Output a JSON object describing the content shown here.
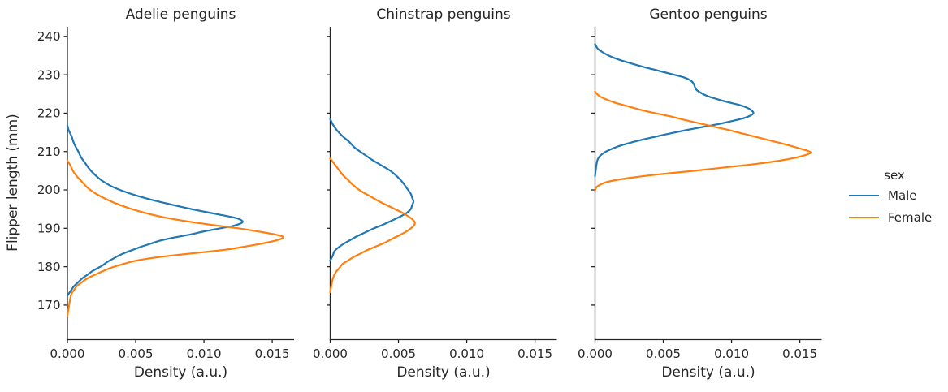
{
  "figure": {
    "xlabel": "Density (a.u.)",
    "ylabel": "Flipper length (mm)",
    "background_color": "#ffffff",
    "text_color": "#262626",
    "axis_color": "#262626"
  },
  "legend": {
    "title": "sex",
    "entries": [
      {
        "label": "Male",
        "color": "#1f77b4"
      },
      {
        "label": "Female",
        "color": "#ff7f0e"
      }
    ]
  },
  "chart_data": {
    "type": "line",
    "subtype": "kde-density-horizontal",
    "xlabel": "Density (a.u.)",
    "ylabel": "Flipper length (mm)",
    "xlim": [
      0,
      0.0166
    ],
    "ylim": [
      161,
      242.5
    ],
    "xticks": [
      0,
      0.005,
      0.01,
      0.015
    ],
    "xtick_labels": [
      "0.000",
      "0.005",
      "0.010",
      "0.015"
    ],
    "yticks": [
      170,
      180,
      190,
      200,
      210,
      220,
      230,
      240
    ],
    "grid": false,
    "legend_position": "right-outside",
    "facets": [
      {
        "title": "Adelie penguins",
        "series": [
          {
            "name": "Male",
            "color": "#1f77b4",
            "points": [
              [
                216.8,
                0
              ],
              [
                215.5,
                0.0001
              ],
              [
                214,
                0.0003
              ],
              [
                212,
                0.0005
              ],
              [
                210,
                0.0008
              ],
              [
                208.5,
                0.001
              ],
              [
                207,
                0.0013
              ],
              [
                205.5,
                0.0016
              ],
              [
                204,
                0.002
              ],
              [
                202.5,
                0.0025
              ],
              [
                201,
                0.0032
              ],
              [
                199.8,
                0.004
              ],
              [
                198.6,
                0.005
              ],
              [
                197.4,
                0.0062
              ],
              [
                196.2,
                0.0076
              ],
              [
                195,
                0.0091
              ],
              [
                193.8,
                0.0108
              ],
              [
                192.8,
                0.0122
              ],
              [
                192.2,
                0.0127
              ],
              [
                191.5,
                0.0128
              ],
              [
                190.7,
                0.0122
              ],
              [
                190,
                0.0112
              ],
              [
                189.2,
                0.01
              ],
              [
                188.4,
                0.009
              ],
              [
                187.6,
                0.0078
              ],
              [
                186.8,
                0.0068
              ],
              [
                186,
                0.0061
              ],
              [
                185.2,
                0.0054
              ],
              [
                184.4,
                0.0048
              ],
              [
                183.6,
                0.0042
              ],
              [
                182.8,
                0.0037
              ],
              [
                182,
                0.0033
              ],
              [
                181.2,
                0.0029
              ],
              [
                180.4,
                0.0026
              ],
              [
                179.6,
                0.0022
              ],
              [
                178.8,
                0.0018
              ],
              [
                178,
                0.0015
              ],
              [
                177,
                0.0011
              ],
              [
                176,
                0.0008
              ],
              [
                175,
                0.0005
              ],
              [
                174,
                0.0003
              ],
              [
                173,
                0.0001
              ],
              [
                172.4,
                0
              ]
            ]
          },
          {
            "name": "Female",
            "color": "#ff7f0e",
            "points": [
              [
                207.6,
                0
              ],
              [
                206.5,
                0.0002
              ],
              [
                205,
                0.0004
              ],
              [
                203.5,
                0.0007
              ],
              [
                202,
                0.0011
              ],
              [
                200.5,
                0.0015
              ],
              [
                199,
                0.0021
              ],
              [
                197.5,
                0.0029
              ],
              [
                196,
                0.0039
              ],
              [
                194.5,
                0.0052
              ],
              [
                193,
                0.0069
              ],
              [
                191.8,
                0.0088
              ],
              [
                190.8,
                0.0108
              ],
              [
                189.9,
                0.0127
              ],
              [
                189.1,
                0.0141
              ],
              [
                188.4,
                0.0152
              ],
              [
                187.8,
                0.0158
              ],
              [
                187.2,
                0.0156
              ],
              [
                186.5,
                0.0149
              ],
              [
                185.8,
                0.0139
              ],
              [
                185.1,
                0.0128
              ],
              [
                184.4,
                0.0115
              ],
              [
                183.8,
                0.01
              ],
              [
                183.2,
                0.0084
              ],
              [
                182.6,
                0.0069
              ],
              [
                182,
                0.0057
              ],
              [
                181.4,
                0.0048
              ],
              [
                180.8,
                0.0042
              ],
              [
                180.2,
                0.0036
              ],
              [
                179.6,
                0.0031
              ],
              [
                179,
                0.0027
              ],
              [
                178.2,
                0.0022
              ],
              [
                177.4,
                0.0017
              ],
              [
                176.6,
                0.0013
              ],
              [
                175.8,
                0.001
              ],
              [
                175,
                0.0007
              ],
              [
                174,
                0.0005
              ],
              [
                173,
                0.0003
              ],
              [
                171.5,
                0.0002
              ],
              [
                169.5,
                0.0001
              ],
              [
                167.2,
                0
              ]
            ]
          }
        ]
      },
      {
        "title": "Chinstrap penguins",
        "series": [
          {
            "name": "Male",
            "color": "#1f77b4",
            "points": [
              [
                218.5,
                0
              ],
              [
                217,
                0.0002
              ],
              [
                215.5,
                0.0005
              ],
              [
                214,
                0.0009
              ],
              [
                212.5,
                0.0014
              ],
              [
                211,
                0.0018
              ],
              [
                209.5,
                0.0024
              ],
              [
                208,
                0.003
              ],
              [
                206.5,
                0.0037
              ],
              [
                205,
                0.0044
              ],
              [
                203.5,
                0.0049
              ],
              [
                202,
                0.0053
              ],
              [
                200.5,
                0.0056
              ],
              [
                199,
                0.0059
              ],
              [
                198,
                0.006
              ],
              [
                197,
                0.0061
              ],
              [
                196,
                0.006
              ],
              [
                195,
                0.0059
              ],
              [
                194,
                0.0056
              ],
              [
                193,
                0.0051
              ],
              [
                192,
                0.0045
              ],
              [
                191,
                0.0039
              ],
              [
                190,
                0.0032
              ],
              [
                189,
                0.0026
              ],
              [
                188,
                0.002
              ],
              [
                187,
                0.0015
              ],
              [
                186,
                0.001
              ],
              [
                185,
                0.0006
              ],
              [
                184,
                0.0003
              ],
              [
                183,
                0.0002
              ],
              [
                181.6,
                0
              ]
            ]
          },
          {
            "name": "Female",
            "color": "#ff7f0e",
            "points": [
              [
                208.2,
                0
              ],
              [
                206.8,
                0.0003
              ],
              [
                205.4,
                0.0006
              ],
              [
                204,
                0.0009
              ],
              [
                202.6,
                0.0013
              ],
              [
                201.2,
                0.0017
              ],
              [
                199.8,
                0.0022
              ],
              [
                198.4,
                0.0029
              ],
              [
                197,
                0.0036
              ],
              [
                195.6,
                0.0044
              ],
              [
                194.4,
                0.0051
              ],
              [
                193.4,
                0.0056
              ],
              [
                192.4,
                0.006
              ],
              [
                191.5,
                0.0062
              ],
              [
                190.6,
                0.0061
              ],
              [
                189.7,
                0.0058
              ],
              [
                188.8,
                0.0054
              ],
              [
                187.9,
                0.0049
              ],
              [
                187,
                0.0044
              ],
              [
                186.1,
                0.0039
              ],
              [
                185.2,
                0.0033
              ],
              [
                184.3,
                0.0027
              ],
              [
                183.4,
                0.0022
              ],
              [
                182.5,
                0.0017
              ],
              [
                181.6,
                0.0013
              ],
              [
                180.7,
                0.0009
              ],
              [
                179.8,
                0.0007
              ],
              [
                178.5,
                0.0004
              ],
              [
                177,
                0.0002
              ],
              [
                175.5,
                0.0001
              ],
              [
                173.4,
                0
              ]
            ]
          }
        ]
      },
      {
        "title": "Gentoo penguins",
        "series": [
          {
            "name": "Male",
            "color": "#1f77b4",
            "points": [
              [
                238,
                0
              ],
              [
                236.8,
                0.0002
              ],
              [
                236,
                0.0005
              ],
              [
                235,
                0.001
              ],
              [
                234,
                0.0017
              ],
              [
                233,
                0.0026
              ],
              [
                232,
                0.0036
              ],
              [
                231,
                0.0047
              ],
              [
                230,
                0.0058
              ],
              [
                229.2,
                0.0066
              ],
              [
                228.5,
                0.007
              ],
              [
                227.8,
                0.0072
              ],
              [
                227,
                0.0073
              ],
              [
                226.2,
                0.0074
              ],
              [
                225.4,
                0.0077
              ],
              [
                224.5,
                0.0082
              ],
              [
                223.7,
                0.0089
              ],
              [
                222.9,
                0.0097
              ],
              [
                222.1,
                0.0106
              ],
              [
                221.3,
                0.0112
              ],
              [
                220.6,
                0.0115
              ],
              [
                220,
                0.0116
              ],
              [
                219.4,
                0.0114
              ],
              [
                218.7,
                0.0109
              ],
              [
                218,
                0.0101
              ],
              [
                217.2,
                0.0091
              ],
              [
                216.4,
                0.0079
              ],
              [
                215.6,
                0.0067
              ],
              [
                214.8,
                0.0056
              ],
              [
                214,
                0.0046
              ],
              [
                213.2,
                0.0036
              ],
              [
                212.4,
                0.0027
              ],
              [
                211.6,
                0.0019
              ],
              [
                210.8,
                0.0013
              ],
              [
                210,
                0.0008
              ],
              [
                209,
                0.0004
              ],
              [
                208,
                0.0002
              ],
              [
                206.5,
                0.0001
              ],
              [
                203.6,
                0
              ]
            ]
          },
          {
            "name": "Female",
            "color": "#ff7f0e",
            "points": [
              [
                225.6,
                0
              ],
              [
                224.5,
                0.0003
              ],
              [
                223.6,
                0.0008
              ],
              [
                222.7,
                0.0015
              ],
              [
                221.8,
                0.0024
              ],
              [
                220.9,
                0.0033
              ],
              [
                220,
                0.0044
              ],
              [
                219.1,
                0.0056
              ],
              [
                218.2,
                0.0066
              ],
              [
                217.3,
                0.0077
              ],
              [
                216.4,
                0.0088
              ],
              [
                215.5,
                0.0099
              ],
              [
                214.6,
                0.0109
              ],
              [
                213.7,
                0.0119
              ],
              [
                212.8,
                0.0129
              ],
              [
                211.9,
                0.0139
              ],
              [
                211,
                0.0148
              ],
              [
                210.4,
                0.0154
              ],
              [
                209.8,
                0.0158
              ],
              [
                209.2,
                0.0155
              ],
              [
                208.5,
                0.0148
              ],
              [
                207.8,
                0.0138
              ],
              [
                207.1,
                0.0125
              ],
              [
                206.4,
                0.0109
              ],
              [
                205.7,
                0.0091
              ],
              [
                205,
                0.0073
              ],
              [
                204.4,
                0.0056
              ],
              [
                203.8,
                0.004
              ],
              [
                203.2,
                0.0027
              ],
              [
                202.6,
                0.0016
              ],
              [
                202,
                0.0008
              ],
              [
                201.4,
                0.0004
              ],
              [
                200.7,
                0.0001
              ],
              [
                199.8,
                0
              ]
            ]
          }
        ]
      }
    ]
  }
}
